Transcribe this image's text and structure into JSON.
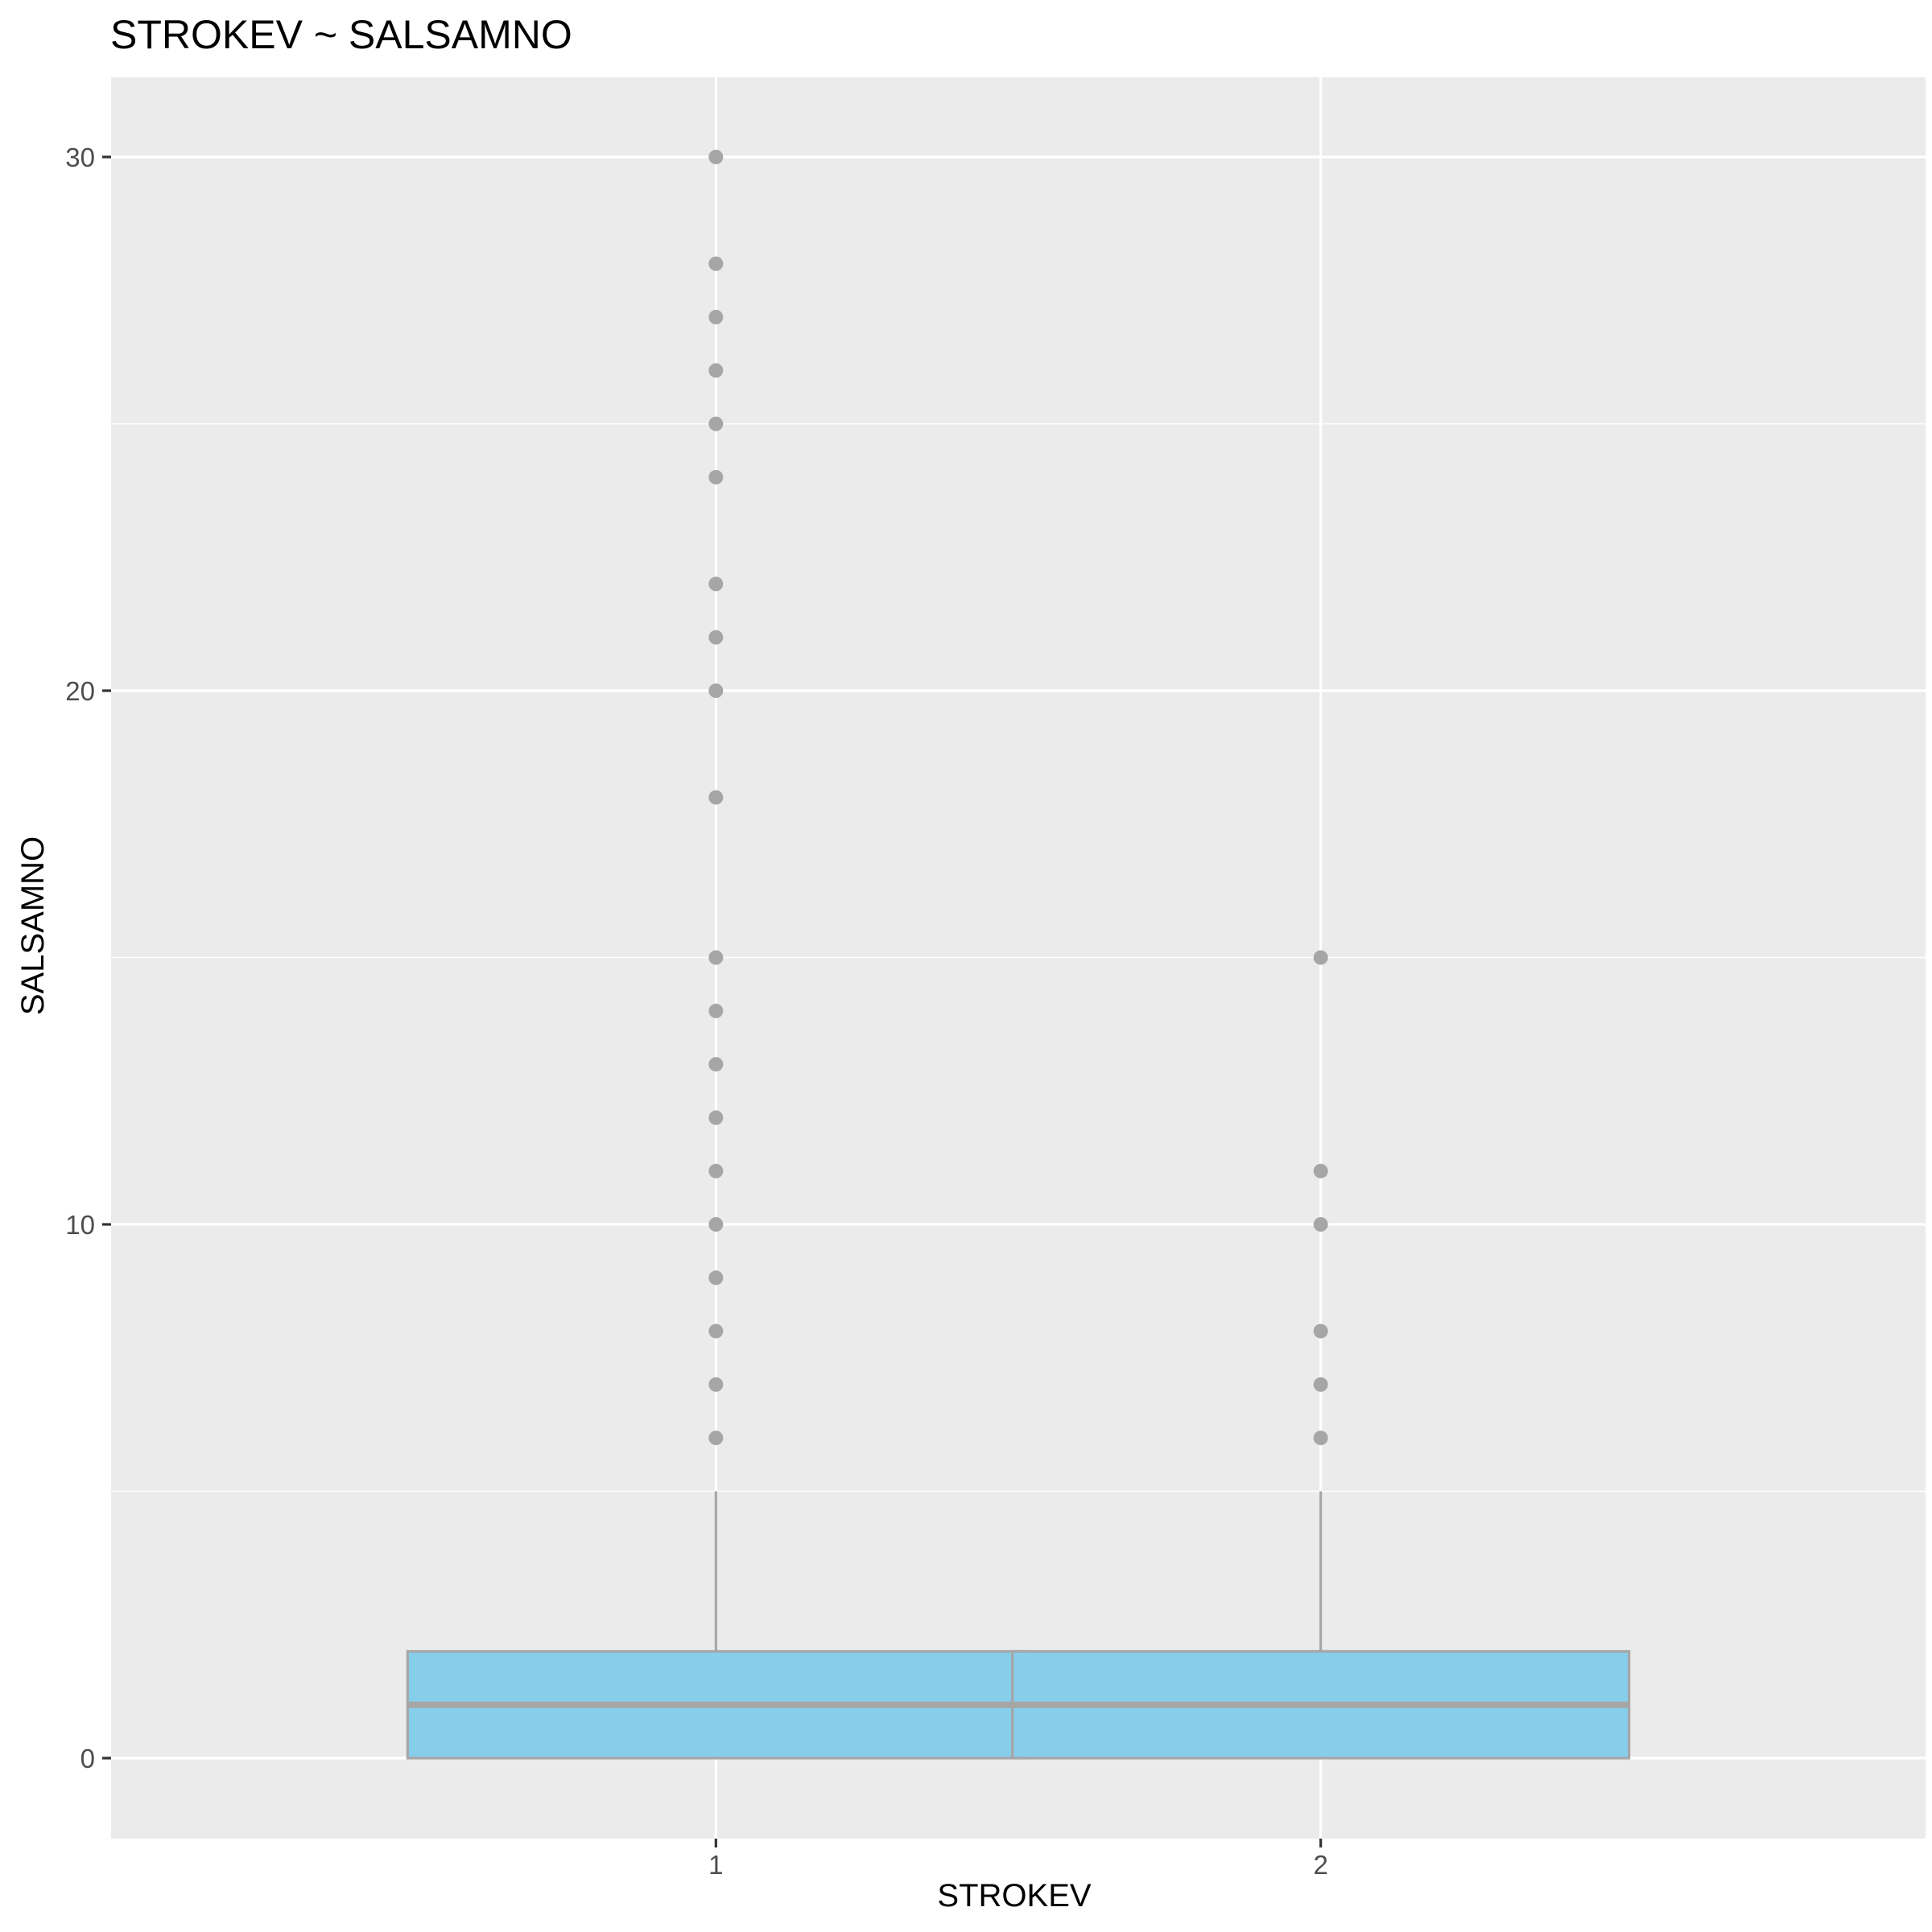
{
  "chart_data": {
    "type": "boxplot",
    "title": "STROKEV ~ SALSAMNO",
    "xlabel": "STROKEV",
    "ylabel": "SALSAMNO",
    "categories": [
      "1",
      "2"
    ],
    "ylim": [
      -1.5,
      31.5
    ],
    "yticks": [
      0,
      10,
      20,
      30
    ],
    "grid": true,
    "colors": {
      "panel_background": "#EBEBEB",
      "grid": "#FFFFFF",
      "box_fill": "#87CEEB",
      "box_outline": "#A6A6A6",
      "outlier": "#A6A6A6",
      "text": "#000000",
      "tick_text": "#4D4D4D"
    },
    "boxes": [
      {
        "category": "1",
        "min": 0,
        "q1": 0,
        "median": 1,
        "q3": 2,
        "whisker_high": 5,
        "outliers": [
          6,
          7,
          8,
          9,
          10,
          11,
          12,
          13,
          14,
          15,
          18,
          20,
          21,
          22,
          24,
          25,
          26,
          27,
          28,
          30
        ]
      },
      {
        "category": "2",
        "min": 0,
        "q1": 0,
        "median": 1,
        "q3": 2,
        "whisker_high": 5,
        "outliers": [
          6,
          7,
          8,
          10,
          11,
          15
        ]
      }
    ]
  }
}
